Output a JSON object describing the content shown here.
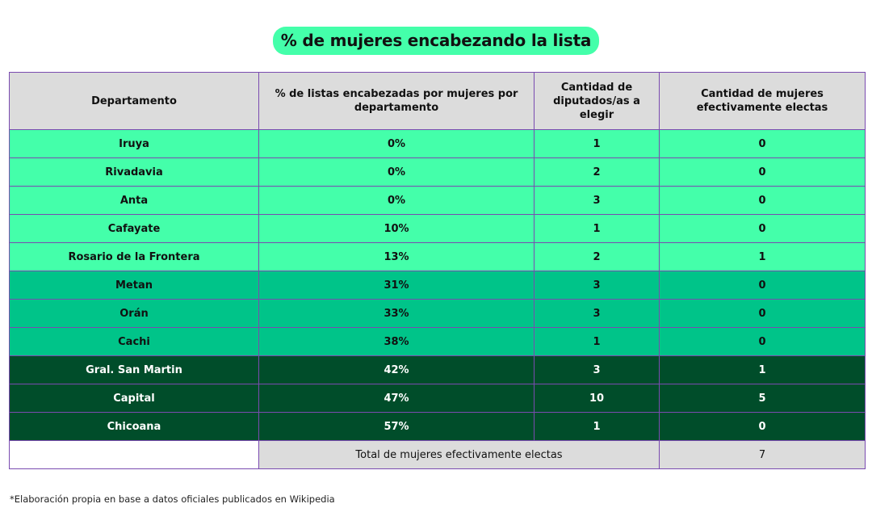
{
  "title": "% de mujeres encabezando la lista",
  "colors": {
    "title_bg": "#44ffaa",
    "header_bg": "#dcdcdc",
    "border": "#7a4bb0",
    "tier_low": "#44ffaa",
    "tier_mid": "#00c489",
    "tier_high": "#004d2a"
  },
  "table": {
    "headers": [
      "Departamento",
      "% de listas encabezadas por mujeres por departamento",
      "Cantidad de diputados/as a elegir",
      "Cantidad de mujeres efectivamente electas"
    ],
    "rows": [
      {
        "tier": "low",
        "cells": [
          "Iruya",
          "0%",
          "1",
          "0"
        ]
      },
      {
        "tier": "low",
        "cells": [
          "Rivadavia",
          "0%",
          "2",
          "0"
        ]
      },
      {
        "tier": "low",
        "cells": [
          "Anta",
          "0%",
          "3",
          "0"
        ]
      },
      {
        "tier": "low",
        "cells": [
          "Cafayate",
          "10%",
          "1",
          "0"
        ]
      },
      {
        "tier": "low",
        "cells": [
          "Rosario de la Frontera",
          "13%",
          "2",
          "1"
        ]
      },
      {
        "tier": "mid",
        "cells": [
          "Metan",
          "31%",
          "3",
          "0"
        ]
      },
      {
        "tier": "mid",
        "cells": [
          "Orán",
          "33%",
          "3",
          "0"
        ]
      },
      {
        "tier": "mid",
        "cells": [
          "Cachi",
          "38%",
          "1",
          "0"
        ]
      },
      {
        "tier": "high",
        "cells": [
          "Gral. San Martin",
          "42%",
          "3",
          "1"
        ]
      },
      {
        "tier": "high",
        "cells": [
          "Capital",
          "47%",
          "10",
          "5"
        ]
      },
      {
        "tier": "high",
        "cells": [
          "Chicoana",
          "57%",
          "1",
          "0"
        ]
      }
    ],
    "total_label": "Total de mujeres efectivamente electas",
    "total_value": "7"
  },
  "footnote": "*Elaboración propia en base a datos oficiales publicados en Wikipedia"
}
